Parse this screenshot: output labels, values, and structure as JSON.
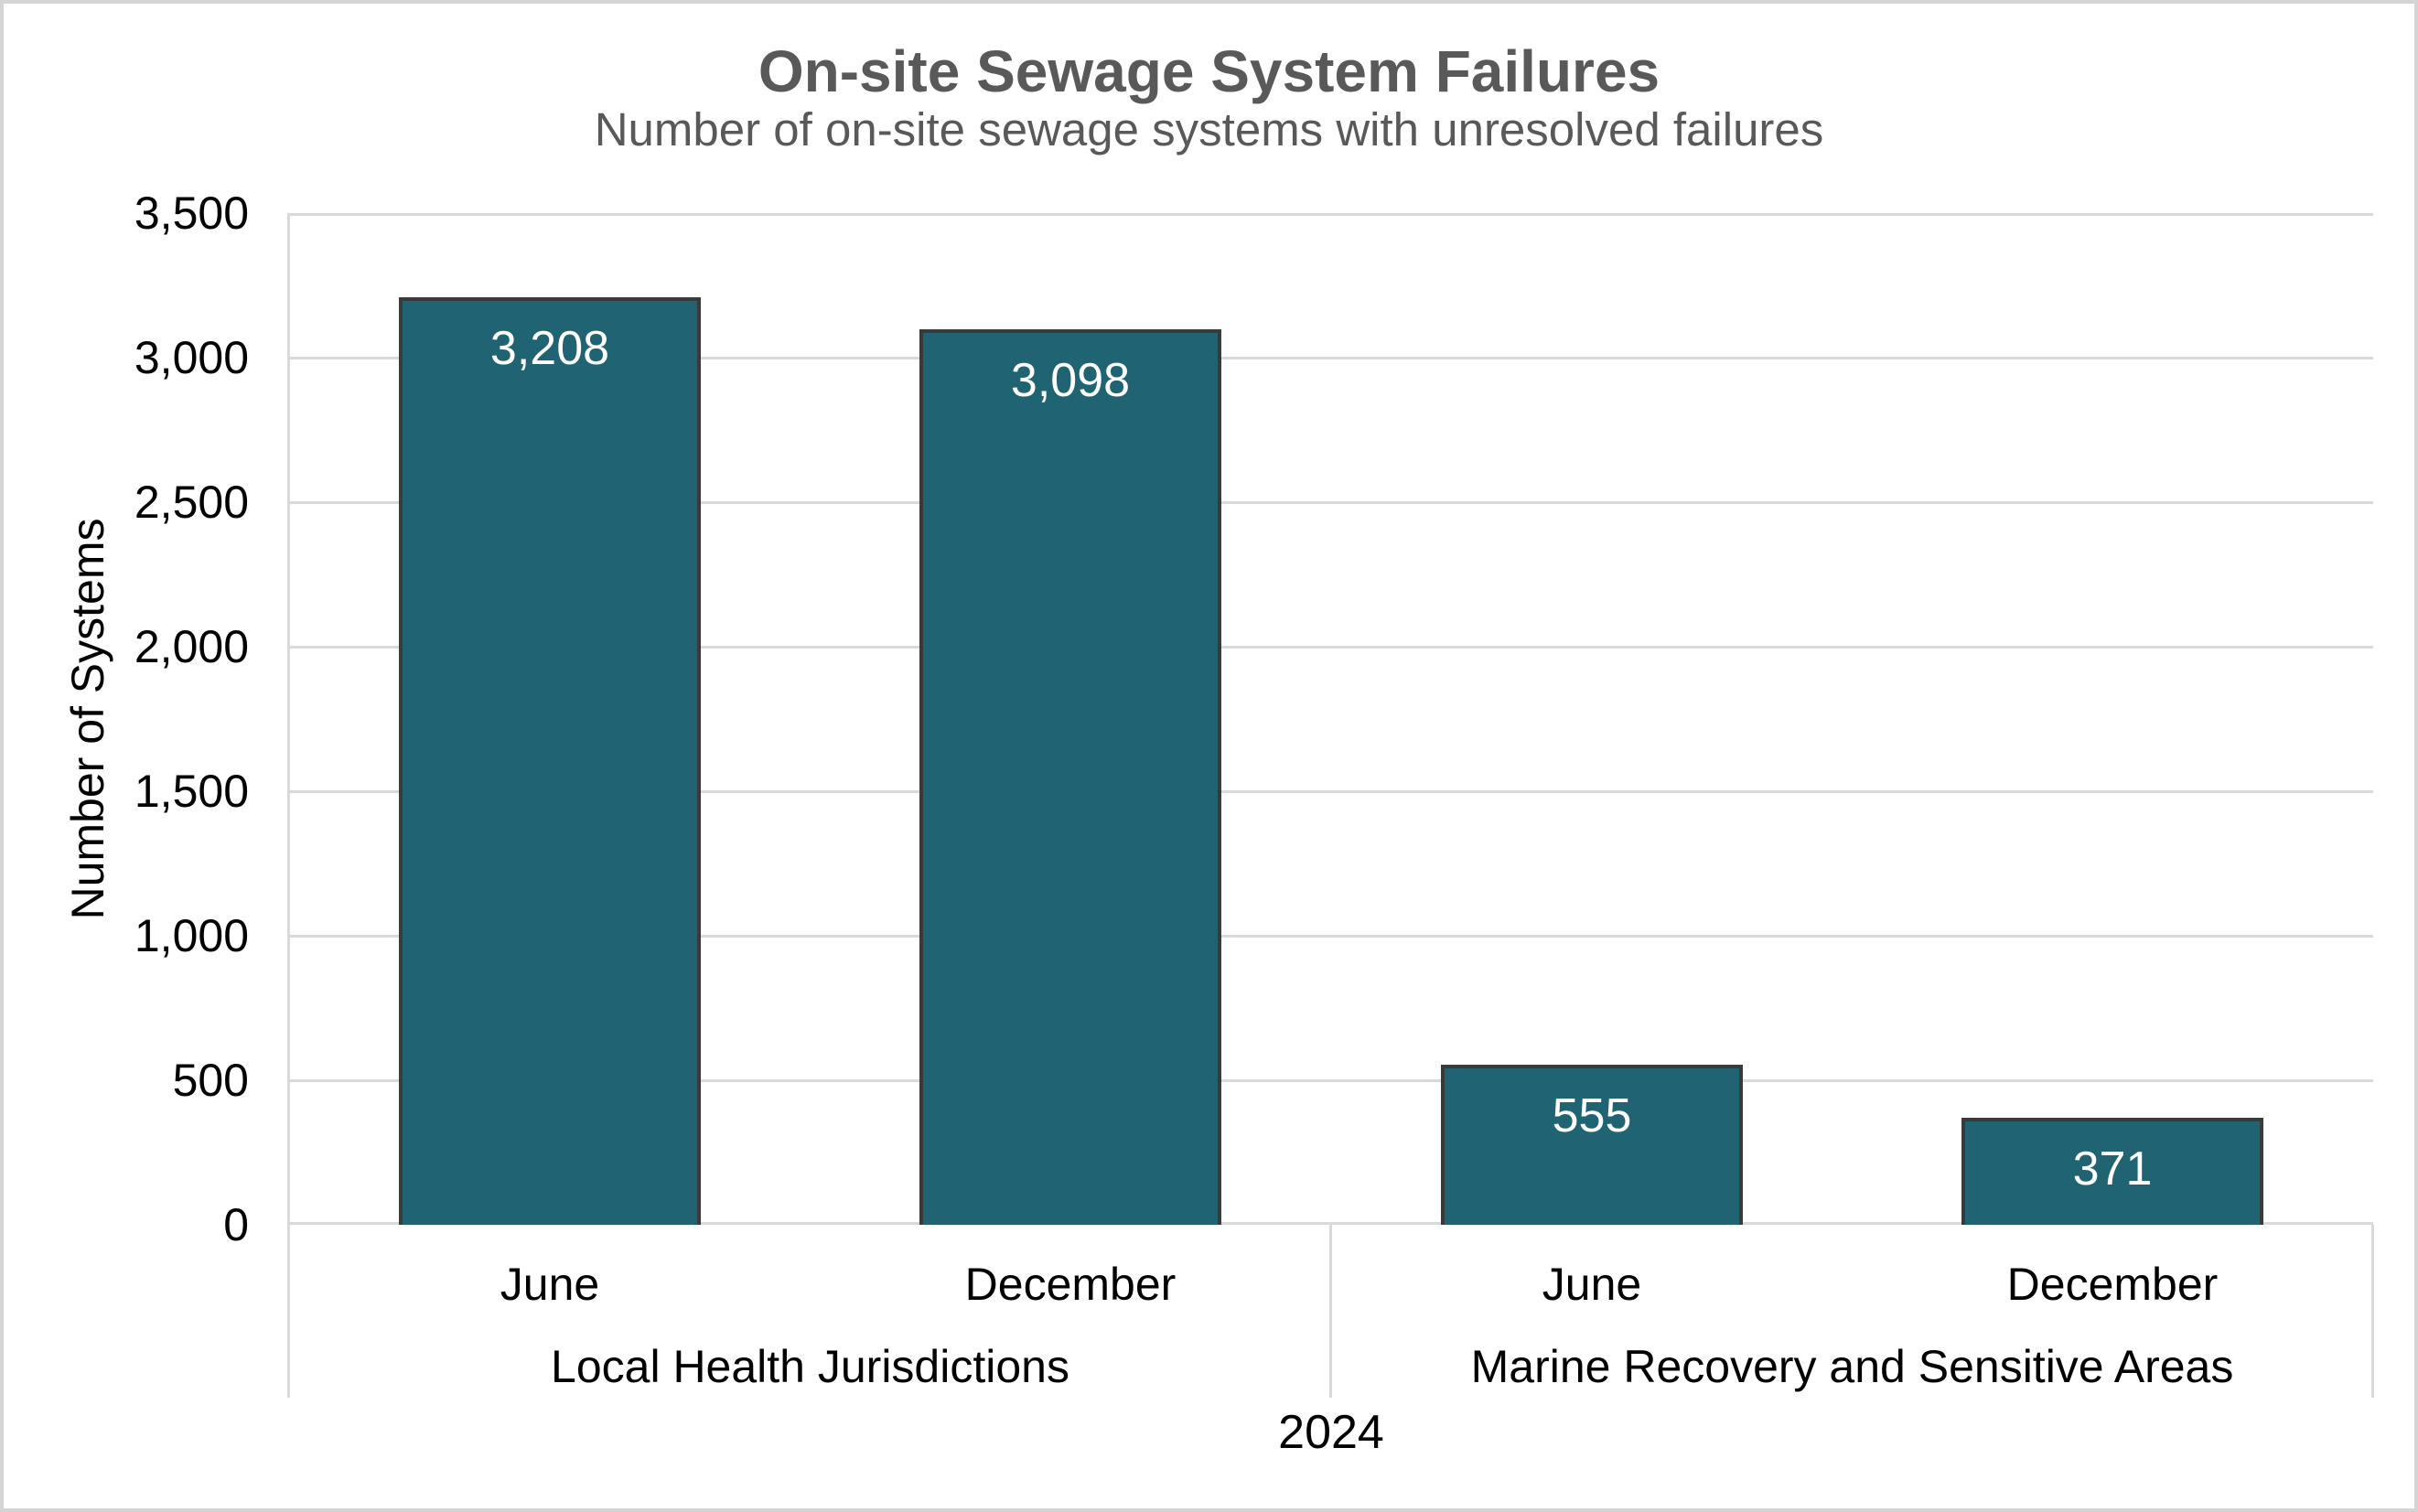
{
  "chart_data": {
    "type": "bar",
    "title": "On-site Sewage System Failures",
    "subtitle": "Number of on-site sewage systems with unresolved failures",
    "ylabel": "Number of Systems",
    "xlabel": "2024",
    "ylim": [
      0,
      3500
    ],
    "ytick_step": 500,
    "yticks": [
      "3,500",
      "3,000",
      "2,500",
      "2,000",
      "1,500",
      "1,000",
      "500",
      "0"
    ],
    "grid": true,
    "legend": "none",
    "groups": [
      {
        "label": "Local Health Jurisdictions",
        "categories": [
          "June",
          "December"
        ],
        "values": [
          3208,
          3098
        ],
        "value_labels": [
          "3,208",
          "3,098"
        ]
      },
      {
        "label": "Marine Recovery and Sensitive Areas",
        "categories": [
          "June",
          "December"
        ],
        "values": [
          555,
          371
        ],
        "value_labels": [
          "555",
          "371"
        ]
      }
    ],
    "colors": {
      "bar_fill": "#206373",
      "bar_border": "#3A3A3A",
      "gridline": "#D9D9D9",
      "title_color": "#595959",
      "axis_text_color": "#000000",
      "value_label_color": "#FFFFFF",
      "outer_border": "#D4D4D4",
      "background": "#FFFFFF"
    }
  }
}
